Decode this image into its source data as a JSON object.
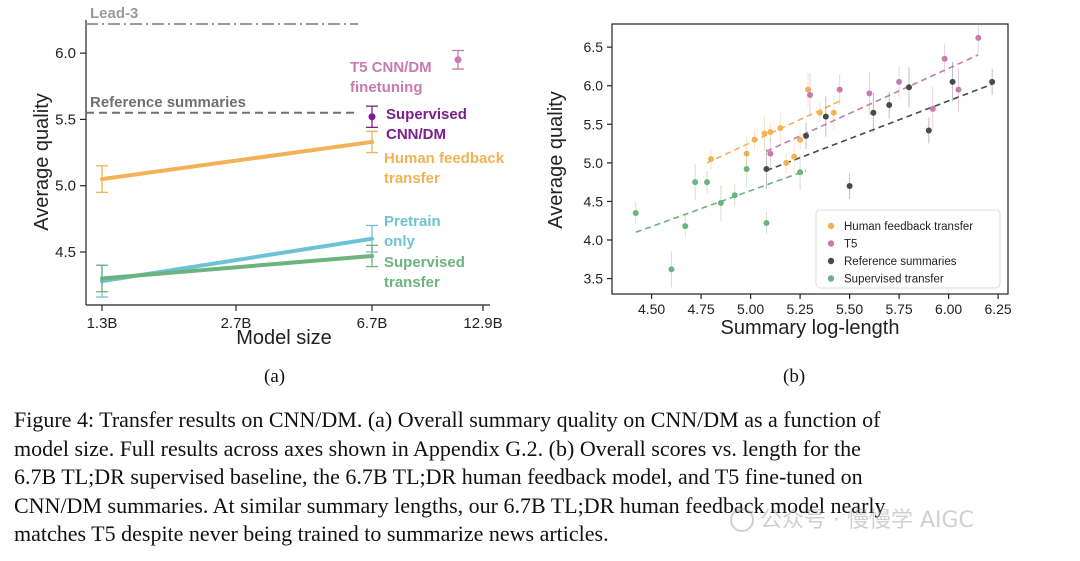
{
  "chart_data": [
    {
      "type": "line",
      "subfigure_label": "(a)",
      "xlabel": "Model size",
      "ylabel": "Average quality",
      "x_ticks": [
        "1.3B",
        "2.7B",
        "6.7B",
        "12.9B"
      ],
      "y_ticks": [
        "4.5",
        "5.0",
        "5.5",
        "6.0"
      ],
      "ylim": [
        4.1,
        6.25
      ],
      "series": [
        {
          "name": "Human feedback transfer",
          "label_lines": [
            "Human feedback",
            "transfer"
          ],
          "color": "#f2b255",
          "points": [
            {
              "x": "1.3B",
              "y": 5.05,
              "err": 0.1
            },
            {
              "x": "6.7B",
              "y": 5.33,
              "err": 0.08
            }
          ]
        },
        {
          "name": "Pretrain only",
          "label_lines": [
            "Pretrain",
            "only"
          ],
          "color": "#6cc3d5",
          "points": [
            {
              "x": "1.3B",
              "y": 4.28,
              "err": 0.12
            },
            {
              "x": "6.7B",
              "y": 4.6,
              "err": 0.1
            }
          ]
        },
        {
          "name": "Supervised transfer",
          "label_lines": [
            "Supervised",
            "transfer"
          ],
          "color": "#6db37e",
          "points": [
            {
              "x": "1.3B",
              "y": 4.3,
              "err": 0.1
            },
            {
              "x": "6.7B",
              "y": 4.47,
              "err": 0.08
            }
          ]
        }
      ],
      "markers": [
        {
          "name": "Supervised CNN/DM",
          "label_lines": [
            "Supervised",
            "CNN/DM"
          ],
          "color": "#7b1f8f",
          "x": "6.7B",
          "y": 5.52,
          "err": 0.08
        },
        {
          "name": "T5 CNN/DM finetuning",
          "label_lines": [
            "T5 CNN/DM",
            "finetuning"
          ],
          "color": "#c77bb0",
          "x": "12.9B",
          "y": 5.95,
          "err": 0.07
        }
      ],
      "reference_lines": [
        {
          "name": "Lead-3",
          "y": 6.22,
          "style": "dashdot",
          "color": "#9a9a9a"
        },
        {
          "name": "Reference summaries",
          "y": 5.55,
          "style": "dashed",
          "color": "#707070"
        }
      ]
    },
    {
      "type": "scatter",
      "subfigure_label": "(b)",
      "xlabel": "Summary log-length",
      "ylabel": "Average quality",
      "xlim": [
        4.3,
        6.3
      ],
      "ylim": [
        3.3,
        6.8
      ],
      "x_ticks": [
        "4.50",
        "4.75",
        "5.00",
        "5.25",
        "5.50",
        "5.75",
        "6.00",
        "6.25"
      ],
      "y_ticks": [
        "3.5",
        "4.0",
        "4.5",
        "5.0",
        "5.5",
        "6.0",
        "6.5"
      ],
      "legend_position": "bottom-right",
      "series": [
        {
          "name": "Human feedback transfer",
          "color": "#f2b255",
          "points": [
            [
              4.8,
              5.05
            ],
            [
              4.98,
              5.12
            ],
            [
              5.02,
              5.3
            ],
            [
              5.07,
              5.38
            ],
            [
              5.1,
              5.4
            ],
            [
              5.15,
              5.45
            ],
            [
              5.18,
              5.0
            ],
            [
              5.22,
              5.08
            ],
            [
              5.25,
              5.3
            ],
            [
              5.29,
              5.95
            ],
            [
              5.35,
              5.65
            ],
            [
              5.42,
              5.65
            ]
          ],
          "trend": [
            [
              4.78,
              5.0
            ],
            [
              5.45,
              5.8
            ]
          ]
        },
        {
          "name": "T5",
          "color": "#c77bb0",
          "points": [
            [
              5.1,
              5.12
            ],
            [
              5.3,
              5.88
            ],
            [
              5.45,
              5.95
            ],
            [
              5.6,
              5.9
            ],
            [
              5.75,
              6.05
            ],
            [
              5.92,
              5.7
            ],
            [
              5.98,
              6.35
            ],
            [
              6.05,
              5.95
            ],
            [
              6.15,
              6.62
            ]
          ],
          "trend": [
            [
              5.08,
              5.15
            ],
            [
              6.15,
              6.4
            ]
          ]
        },
        {
          "name": "Reference summaries",
          "color": "#4a4a4a",
          "points": [
            [
              5.08,
              4.92
            ],
            [
              5.28,
              5.35
            ],
            [
              5.38,
              5.6
            ],
            [
              5.5,
              4.7
            ],
            [
              5.62,
              5.65
            ],
            [
              5.7,
              5.75
            ],
            [
              5.8,
              5.98
            ],
            [
              5.9,
              5.42
            ],
            [
              6.02,
              6.05
            ],
            [
              6.22,
              6.05
            ]
          ],
          "trend": [
            [
              5.08,
              4.9
            ],
            [
              6.22,
              6.02
            ]
          ]
        },
        {
          "name": "Supervised transfer",
          "color": "#6db37e",
          "points": [
            [
              4.42,
              4.35
            ],
            [
              4.6,
              3.62
            ],
            [
              4.67,
              4.18
            ],
            [
              4.72,
              4.75
            ],
            [
              4.78,
              4.75
            ],
            [
              4.85,
              4.48
            ],
            [
              4.92,
              4.58
            ],
            [
              4.98,
              4.92
            ],
            [
              5.08,
              4.22
            ],
            [
              5.25,
              4.88
            ]
          ],
          "trend": [
            [
              4.42,
              4.1
            ],
            [
              5.28,
              4.9
            ]
          ]
        }
      ]
    }
  ],
  "caption": {
    "lines": [
      "Figure 4: Transfer results on CNN/DM. (a) Overall summary quality on CNN/DM as a function of",
      "model size. Full results across axes shown in Appendix G.2. (b) Overall scores vs. length for the",
      "6.7B TL;DR supervised baseline, the 6.7B TL;DR human feedback model, and T5 fine-tuned on",
      "CNN/DM summaries. At similar summary lengths, our 6.7B TL;DR human feedback model nearly",
      "matches T5 despite never being trained to summarize news articles."
    ]
  },
  "watermark": {
    "text": "公众号 · 慢慢学 AIGC"
  }
}
